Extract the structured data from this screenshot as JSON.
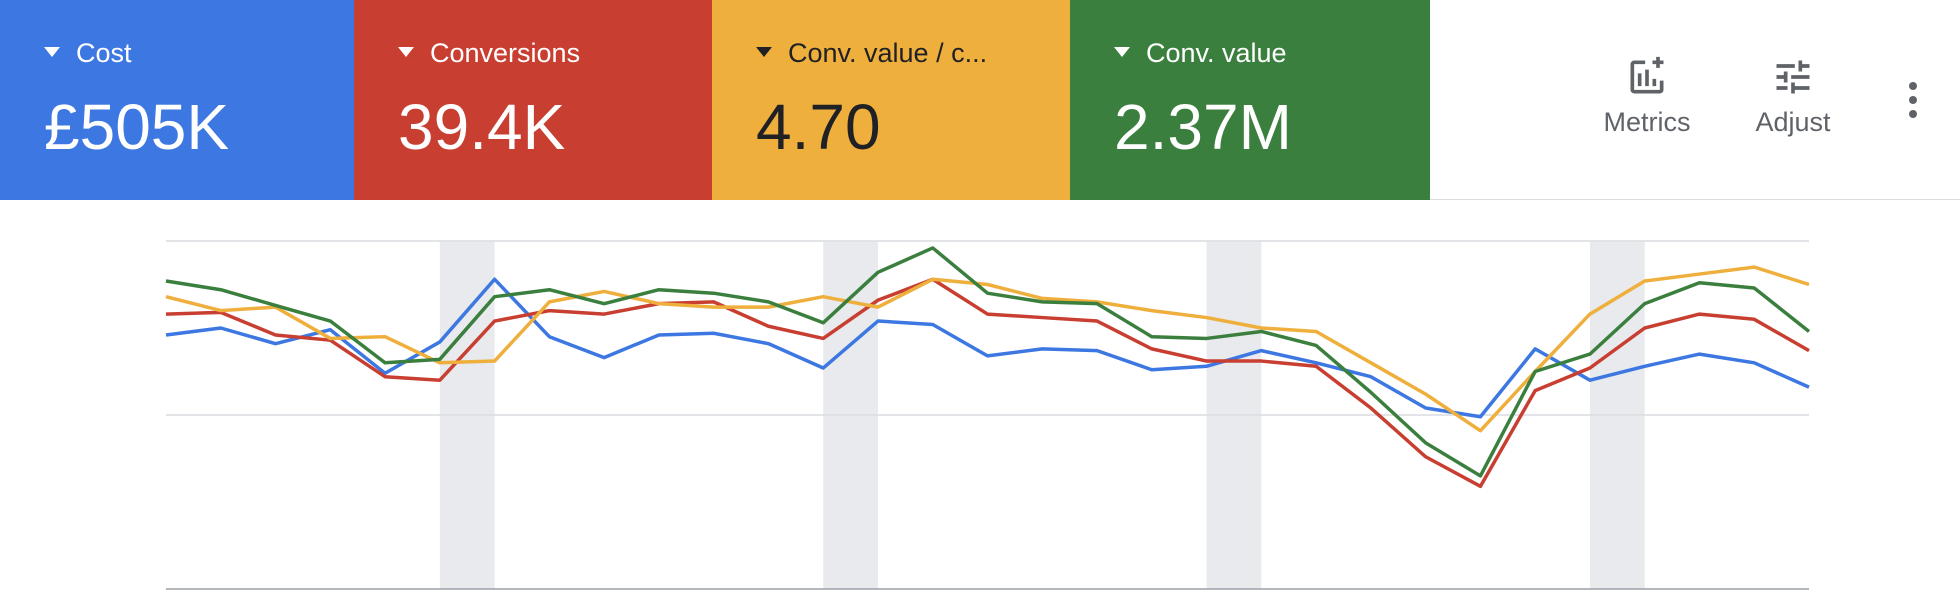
{
  "cards": [
    {
      "label": "Cost",
      "value": "£505K",
      "color": "#3d77e1",
      "text_color": "#ffffff"
    },
    {
      "label": "Conversions",
      "value": "39.4K",
      "color": "#c83f31",
      "text_color": "#ffffff"
    },
    {
      "label": "Conv. value / c...",
      "value": "4.70",
      "color": "#efaf3d",
      "text_color": "#202124"
    },
    {
      "label": "Conv. value",
      "value": "2.37M",
      "color": "#3b7f3e",
      "text_color": "#ffffff"
    }
  ],
  "toolbar": {
    "metrics": "Metrics",
    "adjust": "Adjust"
  },
  "chart_data": {
    "type": "line",
    "categories": [
      null,
      null,
      null,
      null,
      null,
      null,
      null,
      null,
      null,
      null,
      null,
      null,
      null,
      null,
      null,
      null,
      null,
      null,
      null,
      null,
      null,
      null,
      null,
      null,
      null,
      null,
      null,
      null,
      null,
      null,
      null
    ],
    "ylim": [
      0,
      100
    ],
    "yticks": [
      0,
      50,
      100
    ],
    "grid": true,
    "shaded_bands": [
      [
        5,
        6
      ],
      [
        12,
        13
      ],
      [
        19,
        20
      ],
      [
        26,
        27
      ]
    ],
    "series": [
      {
        "color": "#3d77e1",
        "values": [
          73,
          75,
          70.5,
          74.5,
          62,
          71,
          89,
          72.5,
          66.5,
          73,
          73.5,
          70.5,
          63.5,
          77,
          76,
          67,
          69,
          68.5,
          63,
          64,
          68.5,
          65,
          61,
          52,
          49.5,
          69,
          60,
          64,
          67.5,
          65,
          58
        ]
      },
      {
        "color": "#c83f31",
        "values": [
          79,
          79.5,
          73,
          71.5,
          61,
          60,
          77,
          80,
          79,
          82,
          82.5,
          75.5,
          72,
          83,
          89,
          79,
          78,
          77,
          69,
          65.5,
          65.5,
          64,
          52,
          38,
          29.5,
          57,
          63.5,
          75,
          79,
          77.5,
          68.5
        ]
      },
      {
        "color": "#efaf3d",
        "values": [
          84,
          80,
          81,
          72,
          72.5,
          65,
          65.5,
          82.5,
          85.5,
          82,
          81,
          81,
          84,
          81,
          89,
          87.5,
          83.5,
          82.5,
          80,
          78,
          75,
          74,
          65,
          56,
          45.5,
          62.5,
          79,
          88.5,
          90.5,
          92.5,
          87.5
        ]
      },
      {
        "color": "#3b7f3e",
        "values": [
          88.5,
          86,
          81.5,
          77,
          65,
          66,
          84,
          86,
          82,
          86,
          85,
          82.5,
          76.5,
          91,
          98,
          85,
          82.5,
          82,
          72.5,
          72,
          74,
          70,
          56.5,
          42,
          32.5,
          62.5,
          67.5,
          82,
          88,
          86.5,
          74
        ]
      }
    ]
  }
}
